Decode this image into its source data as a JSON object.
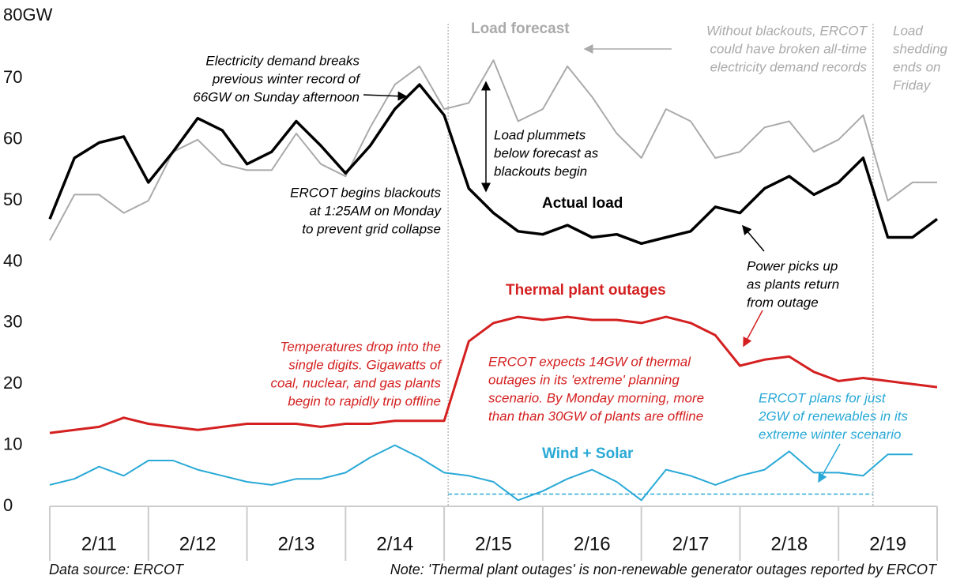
{
  "chart_data": {
    "type": "line",
    "x": [
      0,
      0.25,
      0.5,
      0.75,
      1,
      1.25,
      1.5,
      1.75,
      2,
      2.25,
      2.5,
      2.75,
      3,
      3.25,
      3.5,
      3.75,
      4,
      4.25,
      4.5,
      4.75,
      5,
      5.25,
      5.5,
      5.75,
      6,
      6.25,
      6.5,
      6.75,
      7,
      7.25,
      7.5,
      7.75,
      8,
      8.25,
      8.5,
      8.75,
      9
    ],
    "xlim": [
      0,
      9
    ],
    "xticks": [
      {
        "value": 0.5,
        "label": "2/11"
      },
      {
        "value": 1.5,
        "label": "2/12"
      },
      {
        "value": 2.5,
        "label": "2/13"
      },
      {
        "value": 3.5,
        "label": "2/14"
      },
      {
        "value": 4.5,
        "label": "2/15"
      },
      {
        "value": 5.5,
        "label": "2/16"
      },
      {
        "value": 6.5,
        "label": "2/17"
      },
      {
        "value": 7.5,
        "label": "2/18"
      },
      {
        "value": 8.5,
        "label": "2/19"
      }
    ],
    "ylim": [
      0,
      80
    ],
    "yticks": [
      0,
      10,
      20,
      30,
      40,
      50,
      60,
      70,
      {
        "value": 80,
        "label": "80GW"
      }
    ],
    "series": [
      {
        "name": "Load forecast",
        "color": "#aaaaaa",
        "values": [
          43.5,
          51,
          51,
          48,
          50,
          58,
          60,
          56,
          55,
          55,
          61,
          56,
          54,
          62,
          69,
          72,
          65,
          66,
          73,
          63,
          65,
          72,
          67,
          61,
          57,
          65,
          63,
          57,
          58,
          62,
          63,
          58,
          60,
          64,
          50,
          53,
          53
        ]
      },
      {
        "name": "Actual load",
        "color": "#000000",
        "values": [
          47,
          57,
          59.5,
          60.5,
          53,
          58,
          63.5,
          61.5,
          56,
          58,
          63,
          59,
          54.5,
          59,
          65,
          69,
          64,
          52,
          48,
          45,
          44.5,
          46,
          44,
          44.5,
          43,
          44,
          45,
          49,
          48,
          52,
          54,
          51,
          53,
          57,
          44,
          44,
          47
        ]
      },
      {
        "name": "Thermal plant outages",
        "color": "#d42020",
        "values": [
          12,
          12.5,
          13,
          14.5,
          13.5,
          13,
          12.5,
          13,
          13.5,
          13.5,
          13.5,
          13,
          13.5,
          13.5,
          14,
          14,
          14,
          27,
          30,
          31,
          30.5,
          31,
          30.5,
          30.5,
          30,
          31,
          30,
          28,
          23,
          24,
          24.5,
          22,
          20.5,
          21,
          20.5,
          20,
          19.5
        ]
      },
      {
        "name": "Wind + Solar",
        "color": "#29a9d6",
        "values": [
          3.5,
          4.5,
          6.5,
          5,
          7.5,
          7.5,
          6,
          5,
          4,
          3.5,
          4.5,
          4.5,
          5.5,
          8,
          10,
          8,
          5.5,
          5,
          4,
          1,
          2.5,
          4.5,
          6,
          4,
          1,
          6,
          5,
          3.5,
          5,
          6,
          9,
          5.5,
          5.5,
          5,
          8.5,
          8.5,
          null
        ]
      }
    ],
    "reference_line": {
      "value": 2,
      "xrange": [
        4.04,
        8.35
      ],
      "color": "#29a9d6"
    },
    "vlines": [
      4.04,
      8.35
    ],
    "annotations": [
      {
        "lines": [
          "Electricity demand breaks",
          "previous winter record of",
          "66GW on Sunday afternoon"
        ],
        "color": "#000000"
      },
      {
        "lines": [
          "ERCOT begins blackouts",
          "at 1:25AM on Monday",
          "to prevent grid collapse"
        ],
        "color": "#000000"
      },
      {
        "lines": [
          "Load plummets",
          "below forecast as",
          "blackouts begin"
        ],
        "color": "#000000"
      },
      {
        "lines": [
          "Without blackouts, ERCOT",
          "could have broken all-time",
          "electricity demand records"
        ],
        "color": "#aaaaaa"
      },
      {
        "lines": [
          "Load",
          "shedding",
          "ends on",
          "Friday"
        ],
        "color": "#aaaaaa"
      },
      {
        "lines": [
          "Power picks up",
          "as plants return",
          "from outage"
        ],
        "color": "#000000"
      },
      {
        "lines": [
          "Temperatures drop into the",
          "single digits. Gigawatts of",
          "coal, nuclear, and gas plants",
          "begin to rapidly trip offline"
        ],
        "color": "#d42020"
      },
      {
        "lines": [
          "ERCOT expects 14GW of thermal",
          "outages in its 'extreme' planning",
          "scenario. By Monday morning, more",
          "than than 30GW of plants are offline"
        ],
        "color": "#d42020"
      },
      {
        "lines": [
          "ERCOT plans for just",
          "2GW of renewables in its",
          "extreme winter scenario"
        ],
        "color": "#29a9d6"
      }
    ],
    "source": "Data source: ERCOT",
    "note": "Note: 'Thermal plant outages' is non-renewable generator outages reported by ERCOT"
  }
}
